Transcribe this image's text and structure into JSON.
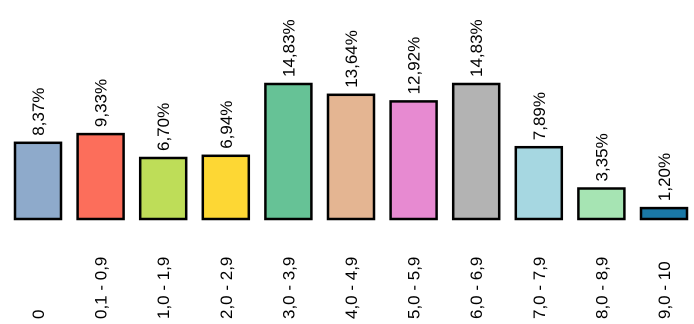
{
  "chart_data": {
    "type": "bar",
    "title": "",
    "xlabel": "",
    "ylabel": "",
    "ylim": [
      0,
      16
    ],
    "grid": false,
    "legend": "none",
    "categories": [
      "0",
      "0,1 - 0,9",
      "1,0 - 1,9",
      "2,0 - 2,9",
      "3,0 - 3,9",
      "4,0 - 4,9",
      "5,0 - 5,9",
      "6,0 - 6,9",
      "7,0 - 7,9",
      "8,0 - 8,9",
      "9,0 - 10"
    ],
    "values": [
      8.37,
      9.33,
      6.7,
      6.94,
      14.83,
      13.64,
      12.92,
      14.83,
      7.89,
      3.35,
      1.2
    ],
    "value_labels": [
      "8,37%",
      "9,33%",
      "6,70%",
      "6,94%",
      "14,83%",
      "13,64%",
      "12,92%",
      "14,83%",
      "7,89%",
      "3,35%",
      "1,20%"
    ],
    "colors": [
      "#8eaacb",
      "#fc6e5b",
      "#bedd58",
      "#fdd734",
      "#66c296",
      "#e4b592",
      "#e78ad1",
      "#b3b3b3",
      "#a6d7e1",
      "#a6e4b3",
      "#1a78a6"
    ],
    "bar_border_color": "#000000"
  }
}
